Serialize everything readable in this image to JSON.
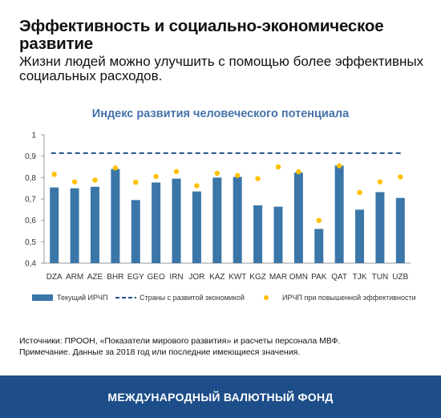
{
  "header": {
    "title": "Эффективность и социально-экономическое развитие",
    "subtitle": "Жизни людей можно улучшить с помощью более эффективных социальных расходов."
  },
  "chart_data": {
    "type": "bar",
    "title": "Индекс развития человеческого потенциала",
    "categories": [
      "DZA",
      "ARM",
      "AZE",
      "BHR",
      "EGY",
      "GEO",
      "IRN",
      "JOR",
      "KAZ",
      "KWT",
      "KGZ",
      "MAR",
      "OMN",
      "PAK",
      "QAT",
      "TJK",
      "TUN",
      "UZB"
    ],
    "series": [
      {
        "name": "Текущий ИРЧП",
        "kind": "bar",
        "color": "#3b76a8",
        "values": [
          0.754,
          0.75,
          0.757,
          0.84,
          0.695,
          0.777,
          0.795,
          0.735,
          0.8,
          0.803,
          0.67,
          0.664,
          0.823,
          0.56,
          0.856,
          0.65,
          0.732,
          0.705
        ]
      },
      {
        "name": "Страны с развитой экономикой",
        "kind": "dashed-line",
        "color": "#1f4e8a",
        "value": 0.914
      },
      {
        "name": "ИРЧП при повышенной эффективности",
        "kind": "dot",
        "color": "#ffc000",
        "values": [
          0.815,
          0.78,
          0.788,
          0.845,
          0.778,
          0.805,
          0.828,
          0.762,
          0.82,
          0.81,
          0.795,
          0.85,
          0.827,
          0.6,
          0.855,
          0.73,
          0.78,
          0.803
        ]
      }
    ],
    "ylim": [
      0.4,
      1.0
    ],
    "yticks": [
      "1",
      "0,9",
      "0,8",
      "0,7",
      "0,6",
      "0,5",
      "0,4"
    ],
    "ytick_values": [
      1.0,
      0.9,
      0.8,
      0.7,
      0.6,
      0.5,
      0.4
    ],
    "grid": false,
    "legend_position": "bottom"
  },
  "notes": {
    "sources": "Источники: ПРООН, «Показатели мирового развития» и расчеты персонала МВФ.",
    "note": "Примечание. Данные за 2018 год или последние имеющиеся значения."
  },
  "footer": {
    "text": "МЕЖДУНАРОДНЫЙ ВАЛЮТНЫЙ ФОНД"
  }
}
